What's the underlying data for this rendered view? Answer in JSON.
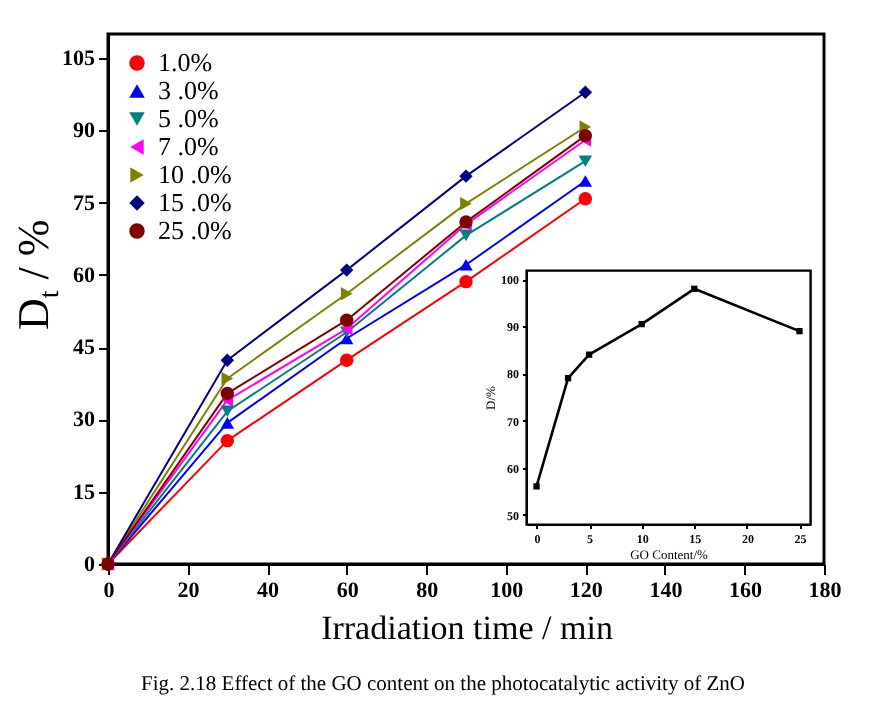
{
  "chart_data": [
    {
      "type": "line",
      "xlabel": "Irradiation time / min",
      "ylabel": "D$_{t}$ / %",
      "x": [
        0,
        30,
        60,
        90,
        120
      ],
      "xlim": [
        0,
        180
      ],
      "xticks": [
        0,
        20,
        40,
        60,
        80,
        100,
        120,
        140,
        160,
        180
      ],
      "ylim": [
        0,
        110
      ],
      "yticks": [
        0,
        15,
        30,
        45,
        60,
        75,
        90,
        105
      ],
      "legend": "top left",
      "line_style": "solid",
      "annotations": [
        "Fig. 2.18 Effect of the GO content on the photocatalytic activity of ZnO"
      ],
      "series": [
        {
          "name": "1.0%",
          "color": "#ff0000",
          "marker": "circle",
          "values": [
            0,
            25.6,
            42.3,
            58.6,
            75.8
          ]
        },
        {
          "name": "3 .0%",
          "color": "#0000ff",
          "marker": "triangle",
          "values": [
            0,
            29.3,
            46.8,
            62.1,
            79.5
          ]
        },
        {
          "name": "5 .0%",
          "color": "#008080",
          "marker": "triangle-down",
          "values": [
            0,
            31.7,
            48.1,
            68.2,
            83.6
          ]
        },
        {
          "name": "7 .0%",
          "color": "#ff00ff",
          "marker": "triangle-left",
          "values": [
            0,
            34,
            48.8,
            70.5,
            88
          ]
        },
        {
          "name": "10 .0%",
          "color": "#808000",
          "marker": "triangle-right",
          "values": [
            0,
            38.5,
            56.1,
            74.8,
            90.7
          ]
        },
        {
          "name": "15 .0%",
          "color": "#000080",
          "marker": "diamond",
          "values": [
            0,
            42.3,
            61,
            80.5,
            97.9
          ]
        },
        {
          "name": "25 .0%",
          "color": "#800000",
          "marker": "circle",
          "values": [
            0,
            35.4,
            50.6,
            71,
            88.9
          ]
        }
      ]
    },
    {
      "type": "line",
      "xlabel": "GO Content/%",
      "ylabel": "D/%",
      "x": [
        0,
        3,
        5,
        10,
        15,
        25
      ],
      "xlim": [
        -1,
        26
      ],
      "xticks": [
        0,
        5,
        10,
        15,
        20,
        25
      ],
      "ylim": [
        48,
        102
      ],
      "yticks": [
        50,
        60,
        70,
        80,
        90,
        100
      ],
      "marker": "square",
      "series": [
        {
          "color": "#000000",
          "values": [
            56,
            79,
            84,
            90.5,
            98,
            89
          ]
        }
      ]
    }
  ]
}
